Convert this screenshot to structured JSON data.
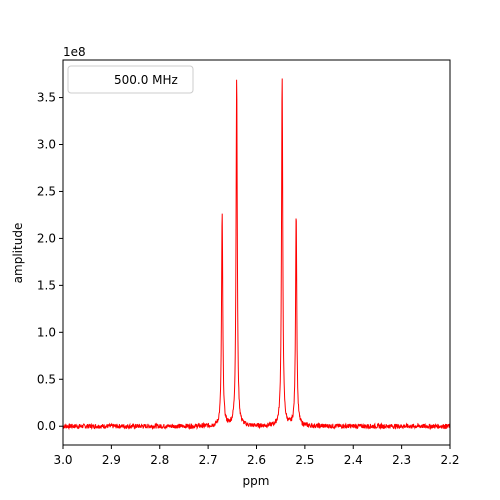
{
  "chart_data": {
    "type": "line",
    "title": "",
    "xlabel": "ppm",
    "ylabel": "amplitude",
    "offset_text": "1e8",
    "xlim": [
      3.0,
      2.2
    ],
    "ylim": [
      -0.2,
      3.9
    ],
    "x_inverted": true,
    "grid": false,
    "legend_placement": "top-left",
    "x_ticks": [
      3.0,
      2.9,
      2.8,
      2.7,
      2.6,
      2.5,
      2.4,
      2.3,
      2.2
    ],
    "x_tick_labels": [
      "3.0",
      "2.9",
      "2.8",
      "2.7",
      "2.6",
      "2.5",
      "2.4",
      "2.3",
      "2.2"
    ],
    "y_ticks": [
      0.0,
      0.5,
      1.0,
      1.5,
      2.0,
      2.5,
      3.0,
      3.5
    ],
    "y_tick_labels": [
      "0.0",
      "0.5",
      "1.0",
      "1.5",
      "2.0",
      "2.5",
      "3.0",
      "3.5"
    ],
    "line_color": "#ff0000",
    "series": [
      {
        "name": "500.0 MHz",
        "peaks": [
          {
            "ppm": 2.671,
            "height": 2.28
          },
          {
            "ppm": 2.641,
            "height": 3.73
          },
          {
            "ppm": 2.547,
            "height": 3.73
          },
          {
            "ppm": 2.518,
            "height": 2.28
          }
        ],
        "half_width_ppm": 0.0015,
        "baseline": 0.0
      }
    ]
  }
}
